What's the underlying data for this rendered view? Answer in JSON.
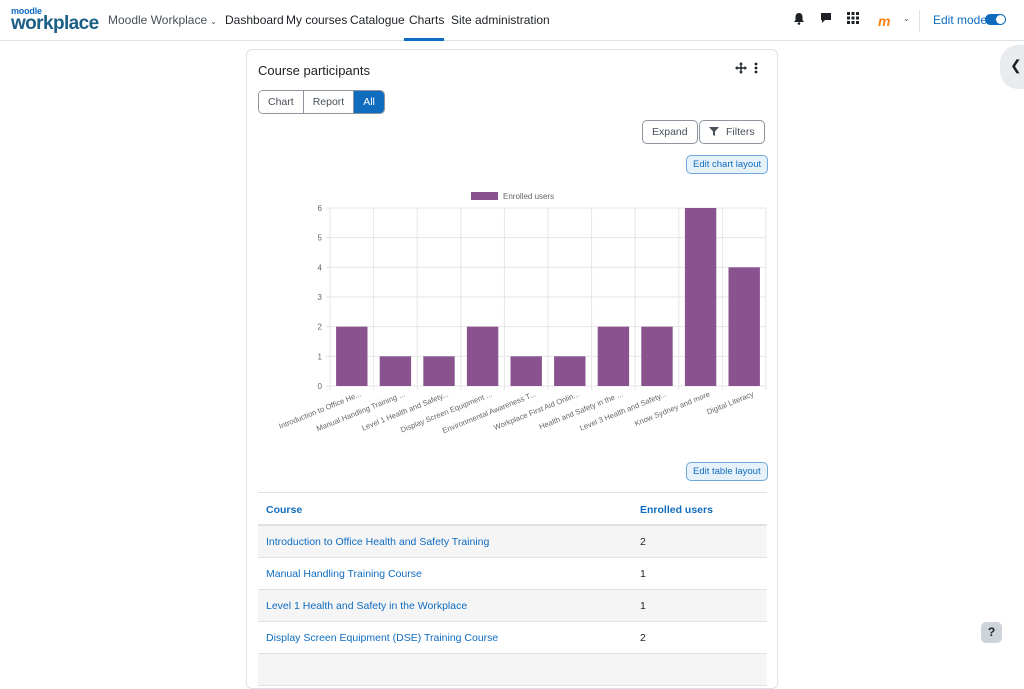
{
  "navbar": {
    "logo_top": "moodle",
    "logo_main": "workplace",
    "brand_menu": "Moodle Workplace",
    "items": [
      {
        "label": "Dashboard"
      },
      {
        "label": "My courses"
      },
      {
        "label": "Catalogue"
      },
      {
        "label": "Charts"
      },
      {
        "label": "Site administration"
      }
    ],
    "active_item": "Charts",
    "icons": [
      "bell-icon",
      "chat-icon",
      "grid-icon"
    ],
    "avatar_text": "m",
    "edit_mode_label": "Edit mode",
    "edit_mode_on": true
  },
  "card": {
    "title": "Course participants",
    "view_tabs": [
      {
        "label": "Chart"
      },
      {
        "label": "Report"
      },
      {
        "label": "All"
      }
    ],
    "active_tab": "All",
    "expand_label": "Expand",
    "filters_label": "Filters",
    "edit_chart_label": "Edit chart layout",
    "edit_table_label": "Edit table layout"
  },
  "chart_data": {
    "type": "bar",
    "categories": [
      "Introduction to Office He...",
      "Manual Handling Training ...",
      "Level 1 Health and Safety...",
      "Display Screen Equipment ...",
      "Environmental Awareness T...",
      "Workplace First Aid Onlin...",
      "Health and Safety in the ...",
      "Level 3 Health and Safety...",
      "Know Sydney and more",
      "Digital Literacy"
    ],
    "series": [
      {
        "name": "Enrolled users",
        "values": [
          2,
          1,
          1,
          2,
          1,
          1,
          2,
          2,
          6,
          4
        ]
      }
    ],
    "ylim": [
      0,
      6
    ],
    "yticks": [
      0,
      1,
      2,
      3,
      4,
      5,
      6
    ],
    "legend": "top",
    "grid": true,
    "color": "#88538f"
  },
  "table": {
    "headers": {
      "course": "Course",
      "enrolled": "Enrolled users"
    },
    "rows": [
      {
        "course": "Introduction to Office Health and Safety Training",
        "enrolled": "2"
      },
      {
        "course": "Manual Handling Training Course",
        "enrolled": "1"
      },
      {
        "course": "Level 1 Health and Safety in the Workplace",
        "enrolled": "1"
      },
      {
        "course": "Display Screen Equipment (DSE) Training Course",
        "enrolled": "2"
      },
      {
        "course": "",
        "enrolled": ""
      }
    ]
  },
  "help_label": "?"
}
